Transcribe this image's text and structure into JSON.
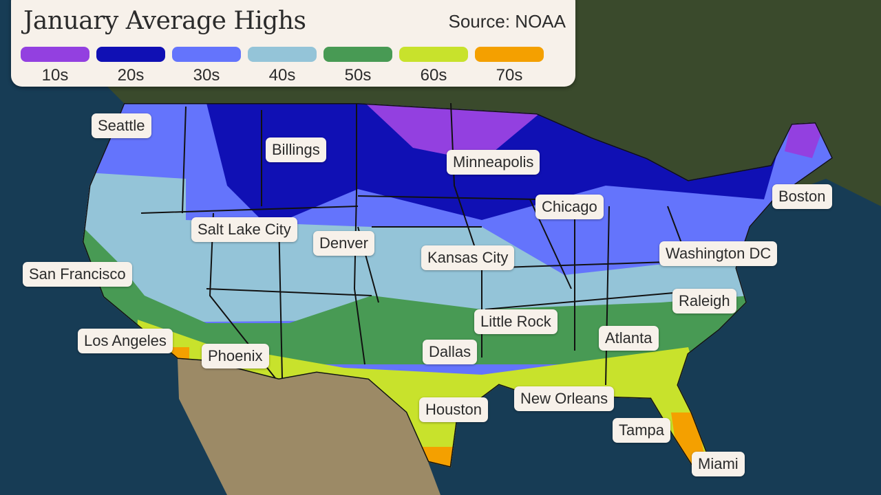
{
  "legend": {
    "title": "January Average Highs",
    "source": "Source: NOAA",
    "items": [
      {
        "label": "10s",
        "color": "#9340e0"
      },
      {
        "label": "20s",
        "color": "#1010b4"
      },
      {
        "label": "30s",
        "color": "#6474fc"
      },
      {
        "label": "40s",
        "color": "#94c4d8"
      },
      {
        "label": "50s",
        "color": "#489a54"
      },
      {
        "label": "60s",
        "color": "#c8e22c"
      },
      {
        "label": "70s",
        "color": "#f4a000"
      }
    ]
  },
  "cities": [
    "Seattle",
    "Billings",
    "Minneapolis",
    "Chicago",
    "Boston",
    "Salt Lake City",
    "Denver",
    "Kansas City",
    "Washington DC",
    "San Francisco",
    "Raleigh",
    "Little Rock",
    "Atlanta",
    "Los Angeles",
    "Phoenix",
    "Dallas",
    "Houston",
    "New Orleans",
    "Tampa",
    "Miami"
  ]
}
